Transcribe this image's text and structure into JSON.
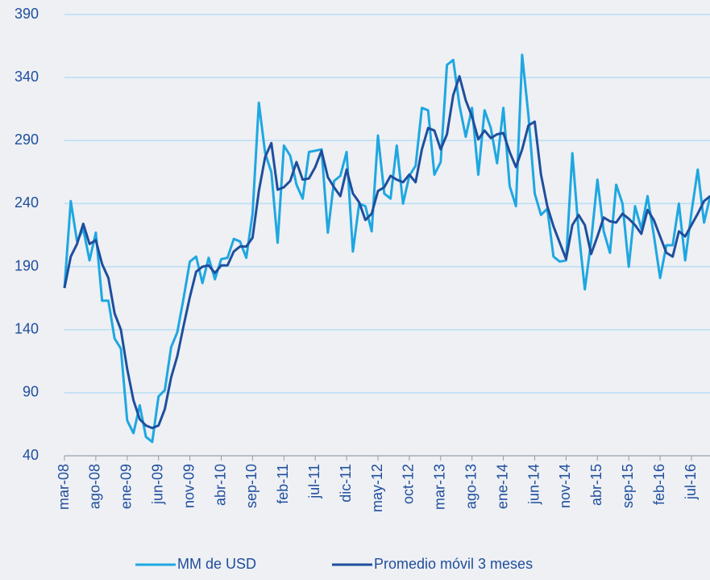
{
  "chart_data": {
    "type": "line",
    "categories": [
      "mar-08",
      null,
      null,
      null,
      null,
      "ago-08",
      null,
      null,
      null,
      null,
      "ene-09",
      null,
      null,
      null,
      null,
      "jun-09",
      null,
      null,
      null,
      null,
      "nov-09",
      null,
      null,
      null,
      null,
      "abr-10",
      null,
      null,
      null,
      null,
      "sep-10",
      null,
      null,
      null,
      null,
      "feb-11",
      null,
      null,
      null,
      null,
      "jul-11",
      null,
      null,
      null,
      null,
      "dic-11",
      null,
      null,
      null,
      null,
      "may-12",
      null,
      null,
      null,
      null,
      "oct-12",
      null,
      null,
      null,
      null,
      "mar-13",
      null,
      null,
      null,
      null,
      "ago-13",
      null,
      null,
      null,
      null,
      "ene-14",
      null,
      null,
      null,
      null,
      "jun-14",
      null,
      null,
      null,
      null,
      "nov-14",
      null,
      null,
      null,
      null,
      "abr-15",
      null,
      null,
      null,
      null,
      "sep-15",
      null,
      null,
      null,
      null,
      "feb-16",
      null,
      null,
      null,
      null,
      "jul-16",
      null,
      null,
      null
    ],
    "series": [
      {
        "name": "MM de USD",
        "color": "#1ea7e1",
        "values": [
          173,
          242,
          210,
          220,
          195,
          217,
          163,
          163,
          133,
          125,
          68,
          58,
          80,
          55,
          51,
          87,
          92,
          126,
          138,
          165,
          194,
          198,
          177,
          197,
          180,
          196,
          197,
          212,
          210,
          197,
          232,
          320,
          280,
          265,
          209,
          286,
          278,
          255,
          244,
          281,
          282,
          283,
          217,
          258,
          262,
          281,
          202,
          240,
          238,
          218,
          294,
          248,
          244,
          286,
          240,
          262,
          270,
          316,
          314,
          263,
          273,
          350,
          354,
          318,
          293,
          316,
          263,
          314,
          300,
          272,
          316,
          254,
          238,
          358,
          310,
          248,
          231,
          236,
          198,
          194,
          195,
          280,
          218,
          172,
          210,
          259,
          218,
          201,
          255,
          240,
          190,
          238,
          220,
          246,
          215,
          181,
          207,
          207,
          240,
          195,
          233,
          267,
          225,
          246
        ]
      },
      {
        "name": "Promedio móvil 3 meses",
        "color": "#1f4e9c",
        "values": [
          173,
          198,
          208,
          224,
          208,
          211,
          192,
          181,
          153,
          140,
          109,
          84,
          69,
          64,
          62,
          64,
          77,
          102,
          119,
          143,
          166,
          186,
          190,
          191,
          185,
          191,
          191,
          202,
          206,
          206,
          213,
          250,
          277,
          288,
          251,
          253,
          258,
          273,
          259,
          260,
          269,
          282,
          261,
          253,
          246,
          267,
          248,
          241,
          227,
          232,
          250,
          253,
          262,
          259,
          257,
          263,
          257,
          283,
          300,
          298,
          283,
          295,
          326,
          341,
          322,
          309,
          291,
          298,
          292,
          295,
          296,
          281,
          269,
          283,
          302,
          305,
          263,
          238,
          222,
          209,
          196,
          223,
          231,
          223,
          200,
          214,
          229,
          226,
          225,
          232,
          228,
          223,
          216,
          235,
          227,
          214,
          201,
          198,
          218,
          214,
          223,
          232,
          242,
          246
        ]
      }
    ],
    "ylim": [
      40,
      390
    ],
    "yticks": [
      40,
      90,
      140,
      190,
      240,
      290,
      340,
      390
    ],
    "grid": true,
    "legend": "bottom"
  }
}
